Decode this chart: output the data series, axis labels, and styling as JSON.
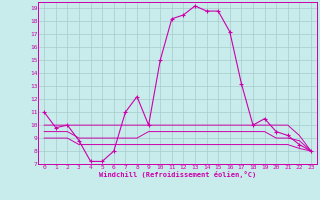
{
  "xlabel": "Windchill (Refroidissement éolien,°C)",
  "bg_color": "#c8ecec",
  "grid_color": "#a8cccc",
  "line_color": "#cc00aa",
  "xlim": [
    -0.5,
    23.5
  ],
  "ylim": [
    7,
    19.5
  ],
  "yticks": [
    7,
    8,
    9,
    10,
    11,
    12,
    13,
    14,
    15,
    16,
    17,
    18,
    19
  ],
  "xticks": [
    0,
    1,
    2,
    3,
    4,
    5,
    6,
    7,
    8,
    9,
    10,
    11,
    12,
    13,
    14,
    15,
    16,
    17,
    18,
    19,
    20,
    21,
    22,
    23
  ],
  "series": [
    {
      "x": [
        0,
        1,
        2,
        3,
        4,
        5,
        6,
        7,
        8,
        9,
        10,
        11,
        12,
        13,
        14,
        15,
        16,
        17,
        18,
        19,
        20,
        21,
        22,
        23
      ],
      "y": [
        11.0,
        9.8,
        10.0,
        8.8,
        7.2,
        7.2,
        8.0,
        11.0,
        12.2,
        10.0,
        15.0,
        18.2,
        18.5,
        19.2,
        18.8,
        18.8,
        17.2,
        13.2,
        10.0,
        10.5,
        9.5,
        9.2,
        8.5,
        8.0
      ],
      "marker": true
    },
    {
      "x": [
        0,
        1,
        2,
        3,
        4,
        5,
        6,
        7,
        8,
        9,
        10,
        11,
        12,
        13,
        14,
        15,
        16,
        17,
        18,
        19,
        20,
        21,
        22,
        23
      ],
      "y": [
        10.0,
        10.0,
        10.0,
        10.0,
        10.0,
        10.0,
        10.0,
        10.0,
        10.0,
        10.0,
        10.0,
        10.0,
        10.0,
        10.0,
        10.0,
        10.0,
        10.0,
        10.0,
        10.0,
        10.0,
        10.0,
        10.0,
        9.2,
        8.0
      ],
      "marker": false
    },
    {
      "x": [
        0,
        1,
        2,
        3,
        4,
        5,
        6,
        7,
        8,
        9,
        10,
        11,
        12,
        13,
        14,
        15,
        16,
        17,
        18,
        19,
        20,
        21,
        22,
        23
      ],
      "y": [
        9.5,
        9.5,
        9.5,
        9.0,
        9.0,
        9.0,
        9.0,
        9.0,
        9.0,
        9.5,
        9.5,
        9.5,
        9.5,
        9.5,
        9.5,
        9.5,
        9.5,
        9.5,
        9.5,
        9.5,
        9.0,
        9.0,
        8.8,
        8.0
      ],
      "marker": false
    },
    {
      "x": [
        0,
        1,
        2,
        3,
        4,
        5,
        6,
        7,
        8,
        9,
        10,
        11,
        12,
        13,
        14,
        15,
        16,
        17,
        18,
        19,
        20,
        21,
        22,
        23
      ],
      "y": [
        9.0,
        9.0,
        9.0,
        8.5,
        8.5,
        8.5,
        8.5,
        8.5,
        8.5,
        8.5,
        8.5,
        8.5,
        8.5,
        8.5,
        8.5,
        8.5,
        8.5,
        8.5,
        8.5,
        8.5,
        8.5,
        8.5,
        8.2,
        8.0
      ],
      "marker": false
    }
  ]
}
